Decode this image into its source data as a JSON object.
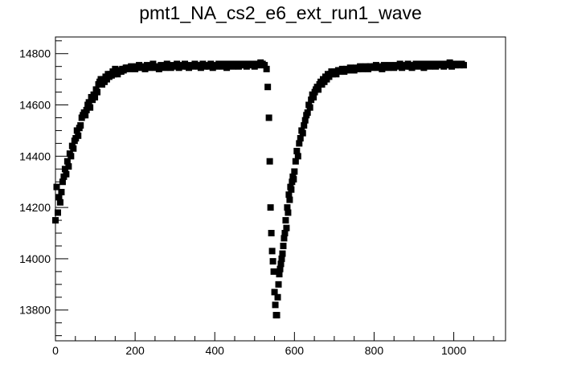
{
  "chart_data": {
    "type": "scatter",
    "title": "pmt1_NA_cs2_e6_ext_run1_wave",
    "xlabel": "",
    "ylabel": "",
    "xlim": [
      0,
      1130
    ],
    "ylim": [
      13680,
      14865
    ],
    "x_ticks": [
      0,
      200,
      400,
      600,
      800,
      1000
    ],
    "x_tick_labels": [
      "0",
      "200",
      "400",
      "600",
      "800",
      "1000"
    ],
    "y_ticks": [
      13800,
      14000,
      14200,
      14400,
      14600,
      14800
    ],
    "y_tick_labels": [
      "13800",
      "14000",
      "14200",
      "14400",
      "14600",
      "14800"
    ],
    "grid": false,
    "legend": "none",
    "marker": "square",
    "color": "#000000",
    "series": [
      {
        "x": [
          0,
          3,
          6,
          9,
          12,
          15,
          18,
          21,
          24,
          27,
          30,
          33,
          36,
          39,
          42,
          45,
          48,
          51,
          54,
          57,
          60,
          63,
          66,
          69,
          72,
          75,
          78,
          81,
          84,
          87,
          90,
          93,
          96,
          99,
          102,
          105,
          108,
          111,
          114,
          117,
          120,
          123,
          126,
          129,
          132,
          135,
          138,
          141,
          144,
          147,
          150,
          153,
          156,
          159,
          162,
          165,
          168,
          171,
          174,
          177,
          180,
          185,
          190,
          195,
          200,
          205,
          210,
          215,
          220,
          225,
          230,
          235,
          240,
          245,
          250,
          255,
          260,
          265,
          270,
          275,
          280,
          285,
          290,
          295,
          300,
          305,
          310,
          315,
          320,
          325,
          330,
          335,
          340,
          345,
          350,
          355,
          360,
          365,
          370,
          375,
          380,
          385,
          390,
          395,
          400,
          405,
          410,
          415,
          420,
          425,
          430,
          435,
          440,
          445,
          450,
          455,
          460,
          465,
          470,
          475,
          480,
          485,
          490,
          495,
          500,
          505,
          510,
          515,
          520,
          525
        ],
        "y": [
          14150,
          14280,
          14180,
          14240,
          14220,
          14260,
          14300,
          14320,
          14350,
          14330,
          14380,
          14360,
          14410,
          14400,
          14440,
          14430,
          14460,
          14470,
          14500,
          14480,
          14510,
          14520,
          14550,
          14560,
          14570,
          14560,
          14580,
          14600,
          14610,
          14590,
          14630,
          14620,
          14640,
          14630,
          14660,
          14650,
          14680,
          14690,
          14700,
          14680,
          14700,
          14690,
          14710,
          14700,
          14720,
          14710,
          14720,
          14715,
          14730,
          14720,
          14740,
          14725,
          14720,
          14730,
          14735,
          14730,
          14740,
          14735,
          14740,
          14745,
          14745,
          14740,
          14750,
          14745,
          14740,
          14750,
          14755,
          14745,
          14750,
          14740,
          14755,
          14745,
          14750,
          14760,
          14745,
          14750,
          14740,
          14755,
          14750,
          14745,
          14760,
          14750,
          14745,
          14755,
          14750,
          14760,
          14745,
          14755,
          14750,
          14760,
          14750,
          14745,
          14755,
          14750,
          14760,
          14755,
          14750,
          14745,
          14760,
          14750,
          14755,
          14750,
          14760,
          14745,
          14755,
          14750,
          14760,
          14755,
          14750,
          14760,
          14745,
          14755,
          14760,
          14750,
          14755,
          14760,
          14750,
          14755,
          14760,
          14755,
          14750,
          14760,
          14755,
          14760,
          14750,
          14760,
          14755,
          14765,
          14760,
          14755
        ]
      },
      {
        "x": [
          530,
          533,
          536,
          538,
          540,
          542,
          544,
          546,
          548,
          550,
          552,
          554,
          556,
          558,
          560,
          562,
          564,
          566,
          568,
          570,
          572,
          574,
          576,
          578,
          580,
          582,
          584,
          586,
          588,
          590,
          592,
          594,
          596,
          598,
          600,
          603,
          606,
          609,
          612,
          615,
          618,
          621,
          624,
          627,
          630,
          633,
          636,
          639,
          642,
          645,
          648,
          651,
          654,
          657,
          660,
          663,
          666,
          669,
          672,
          675,
          678,
          681,
          684,
          687,
          690,
          693,
          696,
          700,
          705,
          710,
          715,
          720,
          725,
          730,
          735,
          740,
          745,
          750,
          755,
          760,
          765,
          770,
          775,
          780,
          785,
          790,
          795,
          800,
          805,
          810,
          815,
          820,
          825,
          830,
          835,
          840,
          845,
          850,
          855,
          860,
          865,
          870,
          875,
          880,
          885,
          890,
          895,
          900,
          905,
          910,
          915,
          920,
          925,
          930,
          935,
          940,
          945,
          950,
          955,
          960,
          965,
          970,
          975,
          980,
          985,
          990,
          995,
          1000,
          1005,
          1010,
          1015,
          1020,
          1025
        ],
        "y": [
          14740,
          14670,
          14550,
          14380,
          14200,
          14100,
          14030,
          13990,
          13950,
          13870,
          13820,
          13780,
          13780,
          13850,
          13900,
          13940,
          13960,
          13980,
          14000,
          14020,
          14050,
          14080,
          14100,
          14150,
          14120,
          14200,
          14180,
          14250,
          14230,
          14280,
          14270,
          14300,
          14320,
          14310,
          14340,
          14380,
          14420,
          14400,
          14450,
          14470,
          14500,
          14490,
          14520,
          14540,
          14560,
          14570,
          14600,
          14590,
          14620,
          14640,
          14630,
          14650,
          14660,
          14670,
          14660,
          14680,
          14690,
          14680,
          14700,
          14690,
          14710,
          14700,
          14720,
          14710,
          14720,
          14730,
          14720,
          14730,
          14720,
          14735,
          14730,
          14740,
          14730,
          14740,
          14735,
          14745,
          14740,
          14735,
          14745,
          14740,
          14750,
          14740,
          14745,
          14750,
          14740,
          14750,
          14745,
          14750,
          14755,
          14745,
          14750,
          14740,
          14755,
          14750,
          14745,
          14755,
          14750,
          14745,
          14755,
          14750,
          14760,
          14745,
          14755,
          14750,
          14760,
          14750,
          14745,
          14755,
          14760,
          14750,
          14755,
          14760,
          14745,
          14755,
          14760,
          14750,
          14755,
          14760,
          14750,
          14755,
          14760,
          14755,
          14750,
          14760,
          14755,
          14765,
          14750,
          14760,
          14755,
          14760,
          14755,
          14760,
          14755
        ]
      }
    ]
  }
}
